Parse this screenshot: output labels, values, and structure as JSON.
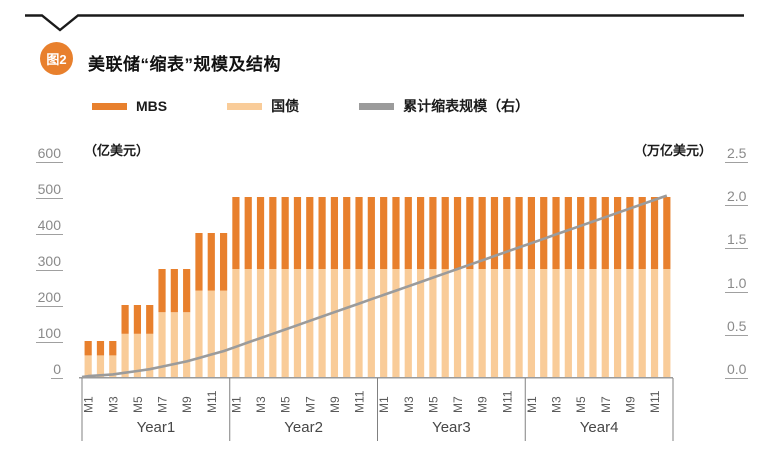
{
  "figure": {
    "badge": "图2",
    "title": "美联储“缩表”规模及结构",
    "badge_color": "#e8802d"
  },
  "legend": [
    {
      "label": "MBS",
      "color": "#e8802d"
    },
    {
      "label": "国债",
      "color": "#f9cc99"
    },
    {
      "label": "累计缩表规模（右）",
      "color": "#9b9b9b"
    }
  ],
  "chart_data": {
    "type": "bar",
    "title": "美联储“缩表”规模及结构",
    "grid": false,
    "legend_position": "top",
    "left_axis": {
      "unit": "（亿美元）",
      "ticks": [
        "0",
        "100",
        "200",
        "300",
        "400",
        "500",
        "600"
      ],
      "range": [
        0,
        600
      ]
    },
    "right_axis": {
      "unit": "（万亿美元）",
      "ticks": [
        "0.0",
        "0.5",
        "1.0",
        "1.5",
        "2.0",
        "2.5"
      ],
      "range": [
        0,
        2.5
      ]
    },
    "x_axis": {
      "years": [
        "Year1",
        "Year2",
        "Year3",
        "Year4"
      ],
      "months_per_year": 12,
      "month_tick_labels": [
        "M1",
        "M3",
        "M5",
        "M7",
        "M9",
        "M11"
      ]
    },
    "series": [
      {
        "name": "国债",
        "type": "bar",
        "stacked": true,
        "axis": "left",
        "color": "#f9cc99",
        "values": [
          60,
          60,
          60,
          120,
          120,
          120,
          180,
          180,
          180,
          240,
          240,
          240,
          300,
          300,
          300,
          300,
          300,
          300,
          300,
          300,
          300,
          300,
          300,
          300,
          300,
          300,
          300,
          300,
          300,
          300,
          300,
          300,
          300,
          300,
          300,
          300,
          300,
          300,
          300,
          300,
          300,
          300,
          300,
          300,
          300,
          300,
          300,
          300
        ]
      },
      {
        "name": "MBS",
        "type": "bar",
        "stacked": true,
        "axis": "left",
        "color": "#e8802d",
        "values": [
          40,
          40,
          40,
          80,
          80,
          80,
          120,
          120,
          120,
          160,
          160,
          160,
          200,
          200,
          200,
          200,
          200,
          200,
          200,
          200,
          200,
          200,
          200,
          200,
          200,
          200,
          200,
          200,
          200,
          200,
          200,
          200,
          200,
          200,
          200,
          200,
          200,
          200,
          200,
          200,
          200,
          200,
          200,
          200,
          200,
          200,
          200,
          200
        ]
      },
      {
        "name": "累计缩表规模（右）",
        "type": "line",
        "axis": "right",
        "color": "#9b9b9b",
        "values": [
          0.01,
          0.02,
          0.03,
          0.05,
          0.07,
          0.09,
          0.12,
          0.15,
          0.18,
          0.22,
          0.26,
          0.3,
          0.35,
          0.4,
          0.45,
          0.5,
          0.55,
          0.6,
          0.65,
          0.7,
          0.75,
          0.8,
          0.85,
          0.9,
          0.95,
          1.0,
          1.05,
          1.1,
          1.15,
          1.2,
          1.25,
          1.3,
          1.35,
          1.4,
          1.45,
          1.5,
          1.55,
          1.6,
          1.65,
          1.7,
          1.75,
          1.8,
          1.85,
          1.9,
          1.95,
          2.0,
          2.05,
          2.1
        ]
      }
    ]
  }
}
